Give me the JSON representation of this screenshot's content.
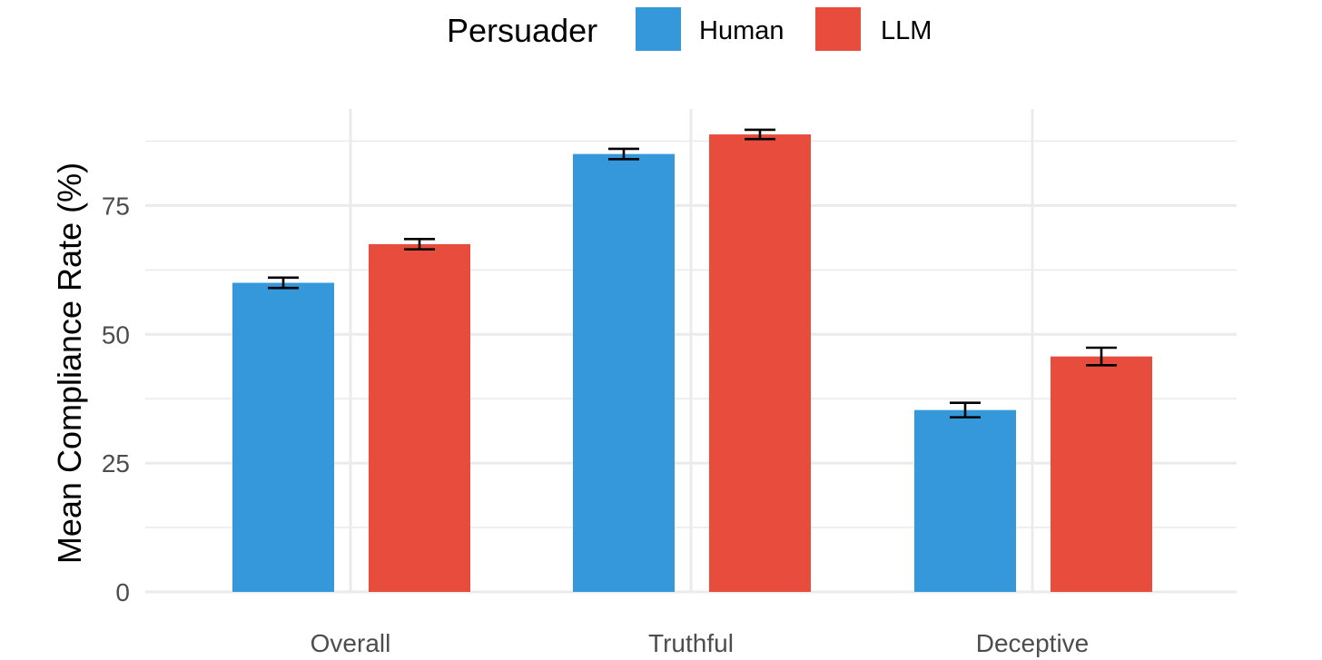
{
  "chart_data": {
    "type": "bar",
    "title": "",
    "xlabel": "",
    "ylabel": "Mean Compliance Rate (%)",
    "ylim": [
      0,
      94
    ],
    "yticks": [
      0,
      25,
      50,
      75
    ],
    "yticks_minor": [
      12.5,
      37.5,
      62.5,
      87.5
    ],
    "grid": true,
    "categories": [
      "Overall",
      "Truthful",
      "Deceptive"
    ],
    "legend": {
      "title": "Persuader",
      "position": "top"
    },
    "series": [
      {
        "name": "Human",
        "color": "#3498db",
        "values": [
          60.0,
          85.0,
          35.3
        ],
        "error_low": [
          59.0,
          84.0,
          33.9
        ],
        "error_high": [
          61.0,
          86.0,
          36.7
        ]
      },
      {
        "name": "LLM",
        "color": "#e74c3c",
        "values": [
          67.5,
          88.8,
          45.7
        ],
        "error_low": [
          66.5,
          87.9,
          44.0
        ],
        "error_high": [
          68.5,
          89.7,
          47.4
        ]
      }
    ]
  }
}
